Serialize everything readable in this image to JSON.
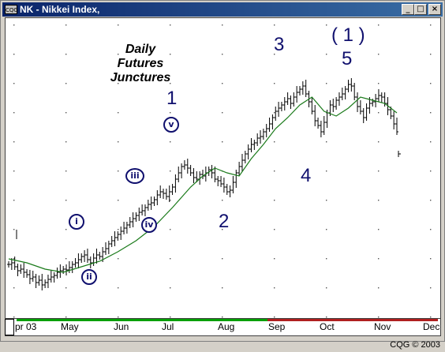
{
  "window": {
    "title": "NK - Nikkei Index,",
    "icon": "cqg-window-icon",
    "minimize": "_",
    "maximize": "□",
    "close": "×"
  },
  "annotations": {
    "title_lines": [
      "Daily",
      "Futures",
      "Junctures"
    ],
    "waves": {
      "w1": "1",
      "w2": "2",
      "w3": "3",
      "w4": "4",
      "w5": "5",
      "wp1": "( 1 )",
      "i": "i",
      "ii": "ii",
      "iii": "iii",
      "iv": "iv",
      "v": "v"
    }
  },
  "footer": "CQG © 2003",
  "chart_data": {
    "type": "ohlc",
    "x_ticks": [
      "pr 03",
      "May",
      "Jun",
      "Jul",
      "Aug",
      "Sep",
      "Oct",
      "Nov",
      "Dec"
    ],
    "colors": {
      "bars": "#000000",
      "moving_average": "#1a7a1a",
      "grid": "#555555",
      "annotation": "#10106e",
      "period_bar_1": "#00a000",
      "period_bar_2": "#b02020"
    },
    "close_series": [
      [
        0,
        312
      ],
      [
        1,
        310
      ],
      [
        2,
        315
      ],
      [
        3,
        320
      ],
      [
        4,
        318
      ],
      [
        5,
        322
      ],
      [
        6,
        325
      ],
      [
        7,
        330
      ],
      [
        8,
        328
      ],
      [
        9,
        335
      ],
      [
        10,
        332
      ],
      [
        11,
        338
      ],
      [
        12,
        335
      ],
      [
        13,
        331
      ],
      [
        14,
        328
      ],
      [
        15,
        326
      ],
      [
        16,
        322
      ],
      [
        17,
        320
      ],
      [
        18,
        318
      ],
      [
        19,
        319
      ],
      [
        20,
        316
      ],
      [
        21,
        312
      ],
      [
        22,
        310
      ],
      [
        23,
        306
      ],
      [
        24,
        302
      ],
      [
        25,
        300
      ],
      [
        26,
        306
      ],
      [
        27,
        310
      ],
      [
        28,
        304
      ],
      [
        29,
        300
      ],
      [
        30,
        302
      ],
      [
        31,
        296
      ],
      [
        32,
        292
      ],
      [
        33,
        286
      ],
      [
        34,
        282
      ],
      [
        35,
        278
      ],
      [
        36,
        274
      ],
      [
        37,
        270
      ],
      [
        38,
        266
      ],
      [
        39,
        262
      ],
      [
        40,
        258
      ],
      [
        41,
        254
      ],
      [
        42,
        250
      ],
      [
        43,
        246
      ],
      [
        44,
        244
      ],
      [
        45,
        240
      ],
      [
        46,
        236
      ],
      [
        47,
        234
      ],
      [
        48,
        230
      ],
      [
        49,
        224
      ],
      [
        50,
        220
      ],
      [
        51,
        222
      ],
      [
        52,
        226
      ],
      [
        53,
        220
      ],
      [
        54,
        214
      ],
      [
        55,
        204
      ],
      [
        56,
        196
      ],
      [
        57,
        188
      ],
      [
        58,
        186
      ],
      [
        59,
        190
      ],
      [
        60,
        196
      ],
      [
        61,
        202
      ],
      [
        62,
        204
      ],
      [
        63,
        198
      ],
      [
        64,
        200
      ],
      [
        65,
        196
      ],
      [
        66,
        192
      ],
      [
        67,
        196
      ],
      [
        68,
        204
      ],
      [
        69,
        206
      ],
      [
        70,
        210
      ],
      [
        71,
        214
      ],
      [
        72,
        220
      ],
      [
        73,
        218
      ],
      [
        74,
        208
      ],
      [
        75,
        196
      ],
      [
        76,
        188
      ],
      [
        77,
        180
      ],
      [
        78,
        172
      ],
      [
        79,
        166
      ],
      [
        80,
        160
      ],
      [
        81,
        158
      ],
      [
        82,
        152
      ],
      [
        83,
        150
      ],
      [
        84,
        144
      ],
      [
        85,
        140
      ],
      [
        86,
        134
      ],
      [
        87,
        126
      ],
      [
        88,
        118
      ],
      [
        89,
        114
      ],
      [
        90,
        110
      ],
      [
        91,
        106
      ],
      [
        92,
        102
      ],
      [
        93,
        108
      ],
      [
        94,
        100
      ],
      [
        95,
        94
      ],
      [
        96,
        90
      ],
      [
        97,
        86
      ],
      [
        98,
        96
      ],
      [
        99,
        106
      ],
      [
        100,
        118
      ],
      [
        101,
        130
      ],
      [
        102,
        136
      ],
      [
        103,
        144
      ],
      [
        104,
        132
      ],
      [
        105,
        120
      ],
      [
        106,
        110
      ],
      [
        107,
        112
      ],
      [
        108,
        104
      ],
      [
        109,
        100
      ],
      [
        110,
        96
      ],
      [
        111,
        90
      ],
      [
        112,
        84
      ],
      [
        113,
        86
      ],
      [
        114,
        100
      ],
      [
        115,
        112
      ],
      [
        116,
        118
      ],
      [
        117,
        126
      ],
      [
        118,
        114
      ],
      [
        119,
        108
      ],
      [
        120,
        106
      ],
      [
        121,
        102
      ],
      [
        122,
        98
      ],
      [
        123,
        100
      ],
      [
        124,
        108
      ],
      [
        125,
        116
      ],
      [
        126,
        124
      ],
      [
        127,
        134
      ],
      [
        128,
        144
      ]
    ],
    "moving_average": [
      [
        0,
        305
      ],
      [
        6,
        310
      ],
      [
        12,
        318
      ],
      [
        18,
        322
      ],
      [
        24,
        315
      ],
      [
        30,
        308
      ],
      [
        36,
        296
      ],
      [
        42,
        282
      ],
      [
        48,
        264
      ],
      [
        54,
        240
      ],
      [
        60,
        214
      ],
      [
        64,
        200
      ],
      [
        68,
        190
      ],
      [
        72,
        196
      ],
      [
        76,
        200
      ],
      [
        80,
        178
      ],
      [
        84,
        160
      ],
      [
        88,
        140
      ],
      [
        92,
        126
      ],
      [
        96,
        110
      ],
      [
        100,
        100
      ],
      [
        104,
        118
      ],
      [
        108,
        124
      ],
      [
        112,
        114
      ],
      [
        116,
        100
      ],
      [
        120,
        104
      ],
      [
        124,
        108
      ],
      [
        128,
        120
      ]
    ],
    "last_tick": [
      128,
      172
    ]
  }
}
